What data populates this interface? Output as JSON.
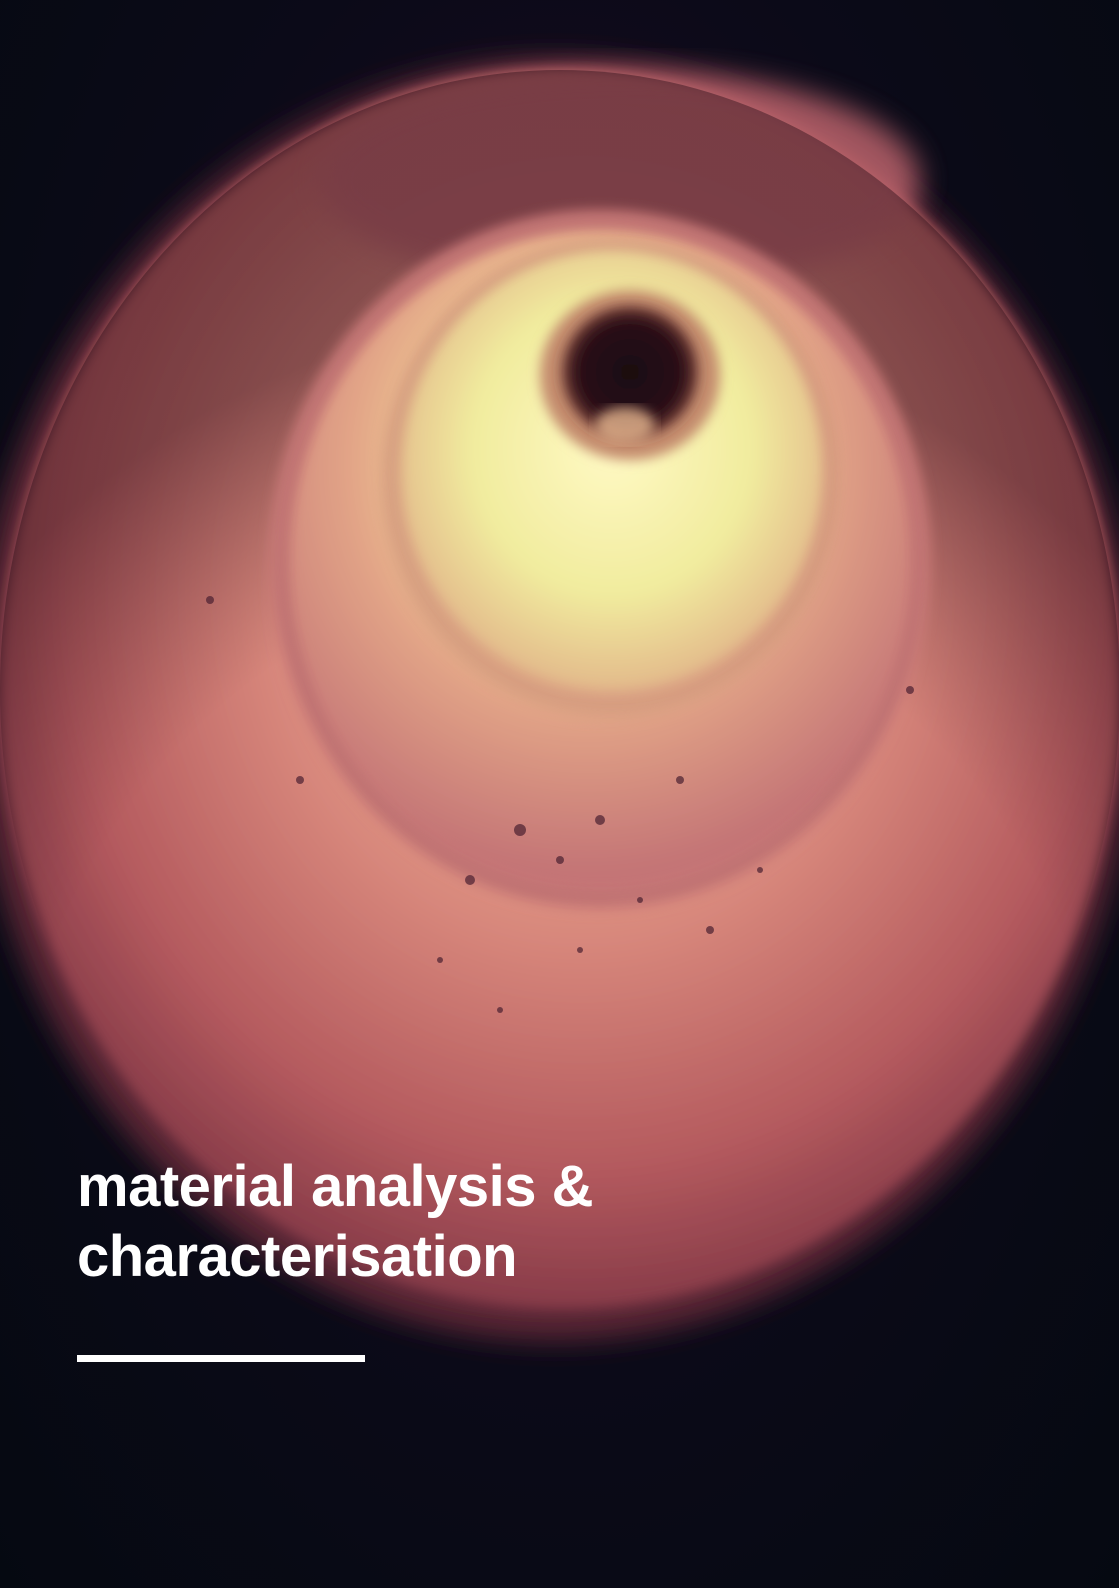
{
  "cover": {
    "title_line_1": "material analysis &",
    "title_line_2": "characterisation"
  },
  "image": {
    "subject": "glowing-tube-interior-photo",
    "colors": {
      "background": "#060a14",
      "rim": "#b0505a",
      "glow": "#f0f08a",
      "title": "#ffffff"
    }
  }
}
